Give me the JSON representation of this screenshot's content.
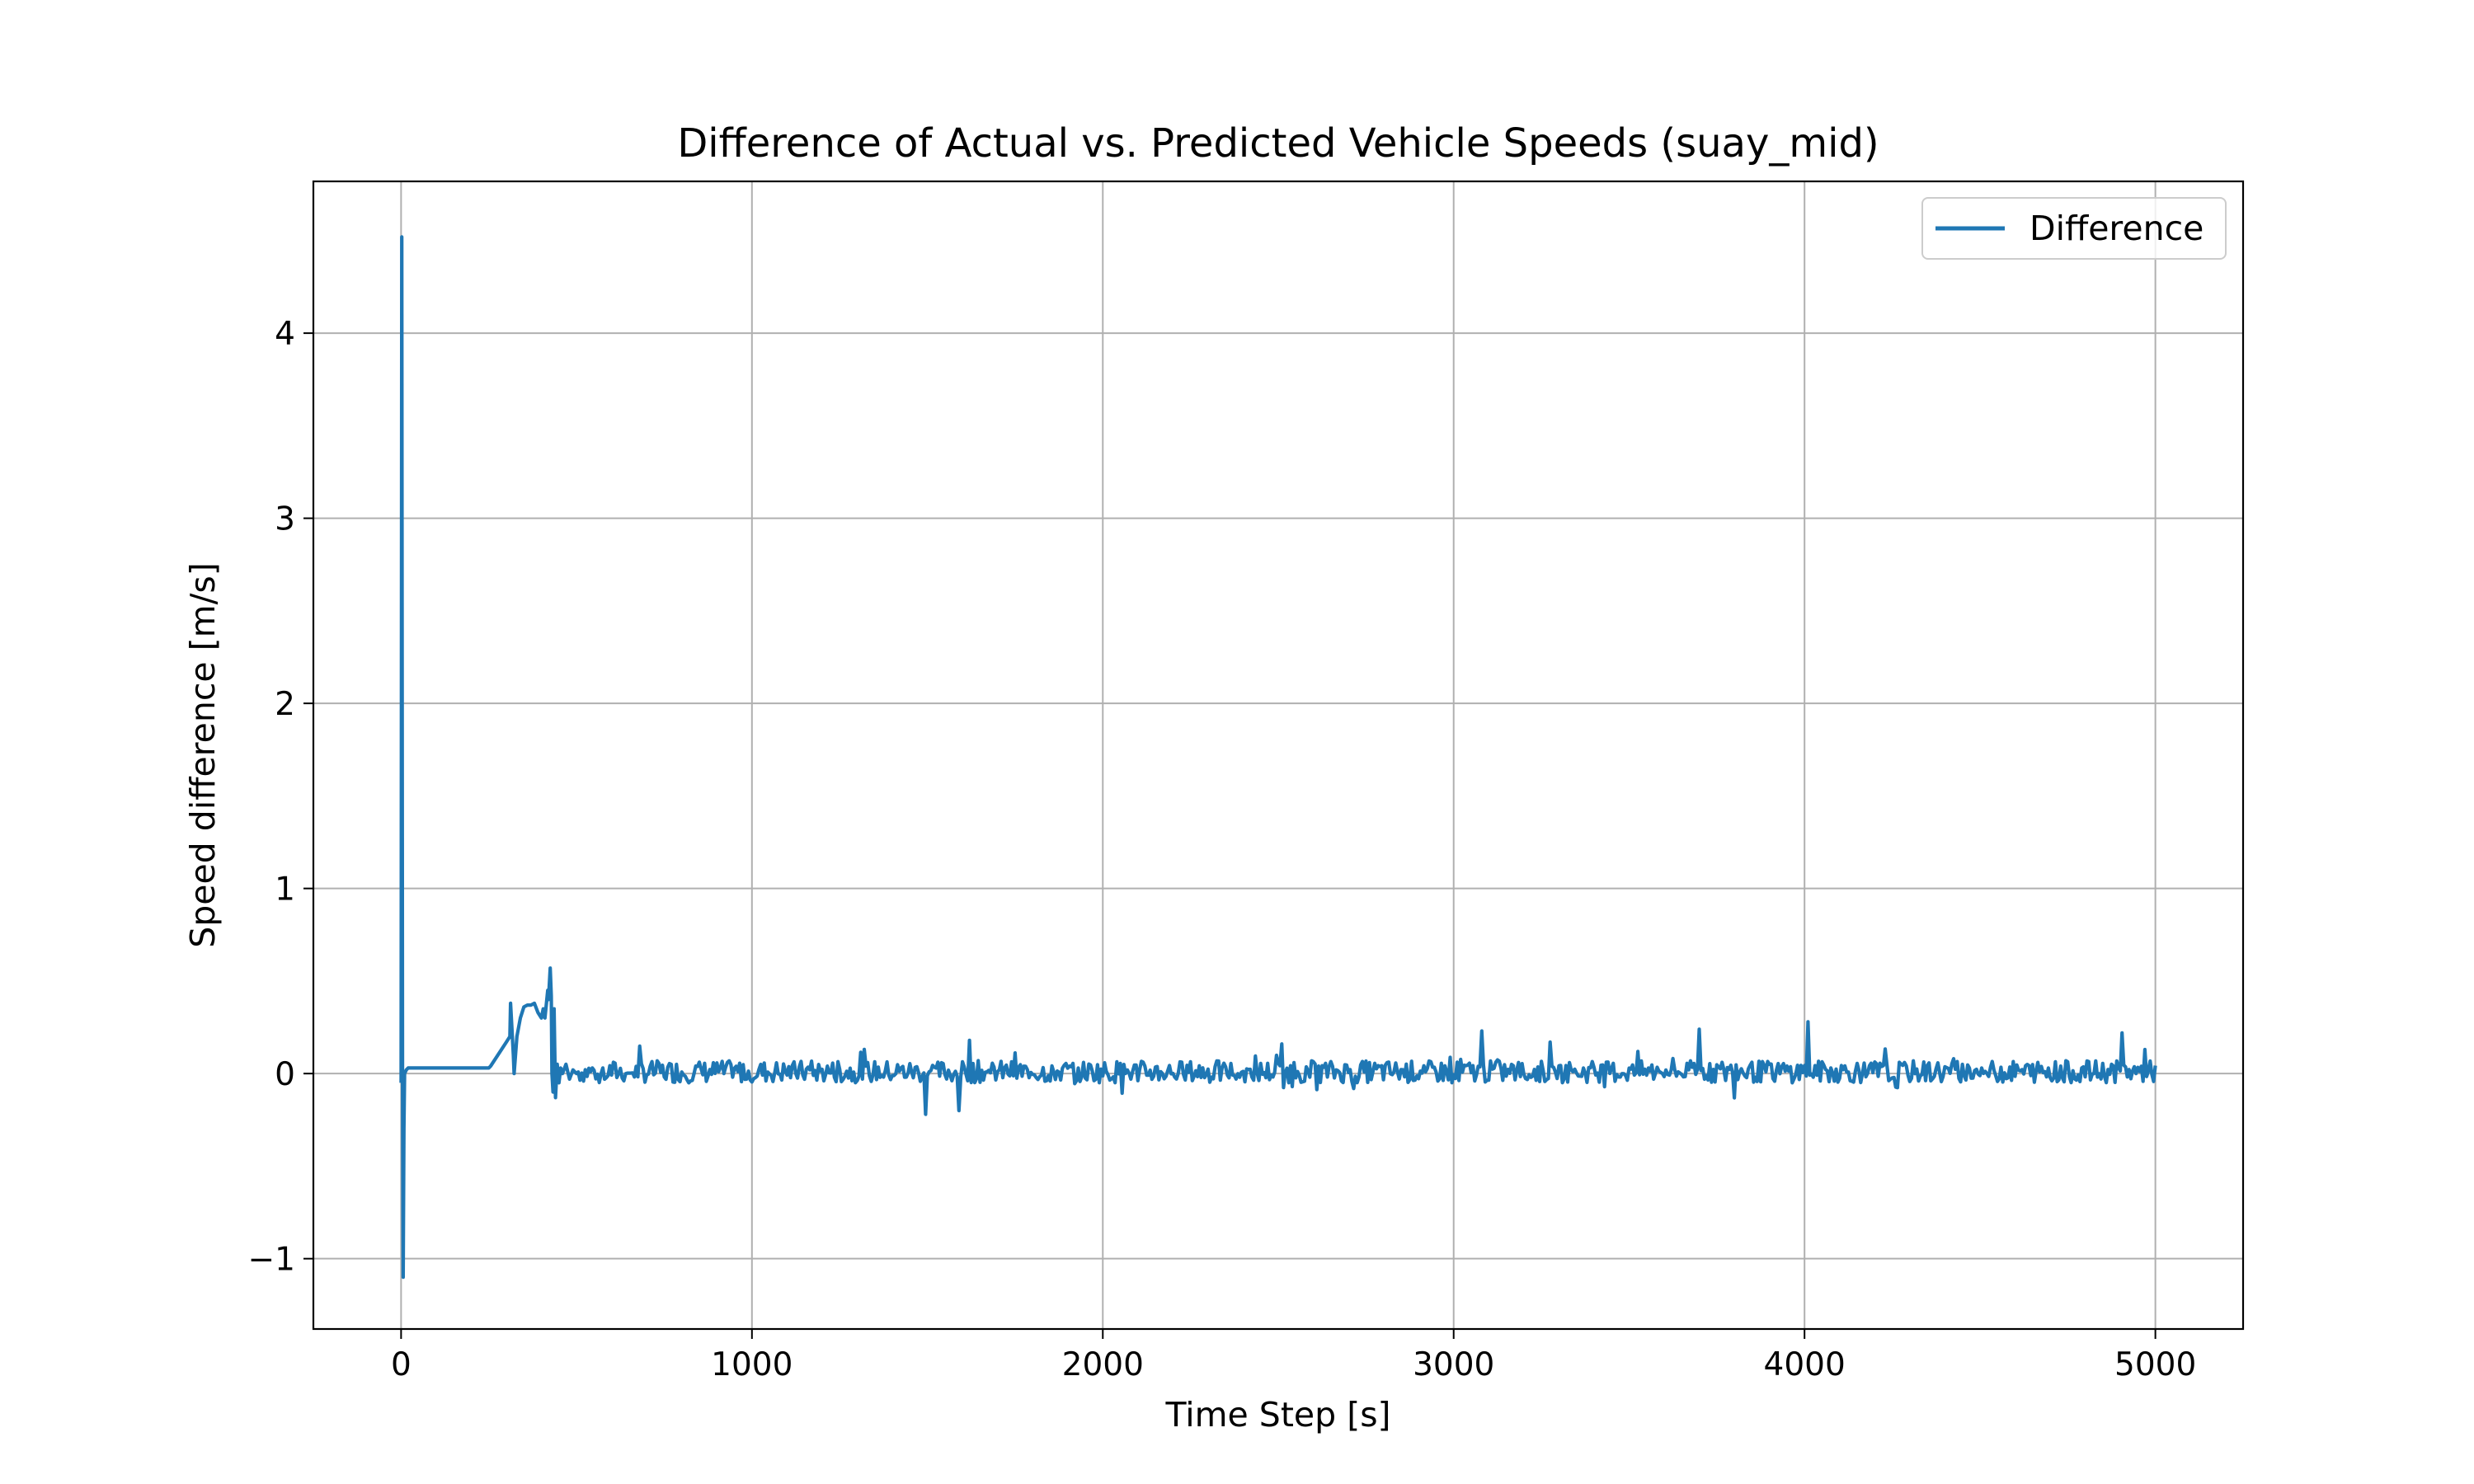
{
  "chart_data": {
    "type": "line",
    "title": "Difference of Actual vs. Predicted Vehicle Speeds (suay_mid)",
    "xlabel": "Time Step [s]",
    "ylabel": "Speed difference [m/s]",
    "xlim": [
      -250,
      5250
    ],
    "ylim": [
      -1.38,
      4.82
    ],
    "xticks": [
      0,
      1000,
      2000,
      3000,
      4000,
      5000
    ],
    "xtick_labels": [
      "0",
      "1000",
      "2000",
      "3000",
      "4000",
      "5000"
    ],
    "yticks": [
      -1,
      0,
      1,
      2,
      3,
      4
    ],
    "ytick_labels": [
      "−1",
      "0",
      "1",
      "2",
      "3",
      "4"
    ],
    "grid": true,
    "legend": {
      "position": "top-right",
      "entries": [
        "Difference"
      ]
    },
    "colors": {
      "series": "#1f77b4",
      "grid": "#b0b0b0",
      "axes": "#000000"
    },
    "series": [
      {
        "name": "Difference",
        "x": [
          0,
          2,
          4,
          6,
          8,
          10,
          15,
          20,
          30,
          50,
          100,
          150,
          200,
          250,
          255,
          300,
          310,
          312,
          320,
          322,
          330,
          340,
          350,
          360,
          370,
          380,
          390,
          400,
          405,
          410,
          418,
          420,
          425,
          428,
          430,
          433,
          436,
          440,
          445,
          450,
          455,
          460,
          470,
          480,
          490,
          500
        ],
        "y": [
          -0.05,
          4.52,
          0.0,
          -1.1,
          -0.3,
          0.0,
          0.02,
          0.03,
          0.03,
          0.03,
          0.03,
          0.03,
          0.03,
          0.03,
          0.04,
          0.17,
          0.2,
          0.38,
          0.1,
          0.0,
          0.2,
          0.3,
          0.36,
          0.37,
          0.37,
          0.38,
          0.33,
          0.3,
          0.35,
          0.3,
          0.45,
          0.4,
          0.57,
          0.42,
          0.0,
          -0.1,
          0.35,
          -0.13,
          0.05,
          -0.05,
          0.03,
          0.0,
          0.05,
          -0.03,
          0.02,
          0.0
        ],
        "noise_from_x": 500,
        "noise_to_x": 5000,
        "noise_step": 5,
        "noise_amplitude": 0.06,
        "noise_peaks": [
          [
            1495,
            -0.22
          ],
          [
            1590,
            -0.2
          ],
          [
            1620,
            0.18
          ],
          [
            2510,
            0.16
          ],
          [
            3080,
            0.23
          ],
          [
            3700,
            0.24
          ],
          [
            4010,
            0.28
          ],
          [
            4905,
            0.22
          ],
          [
            4970,
            0.13
          ]
        ]
      }
    ]
  }
}
